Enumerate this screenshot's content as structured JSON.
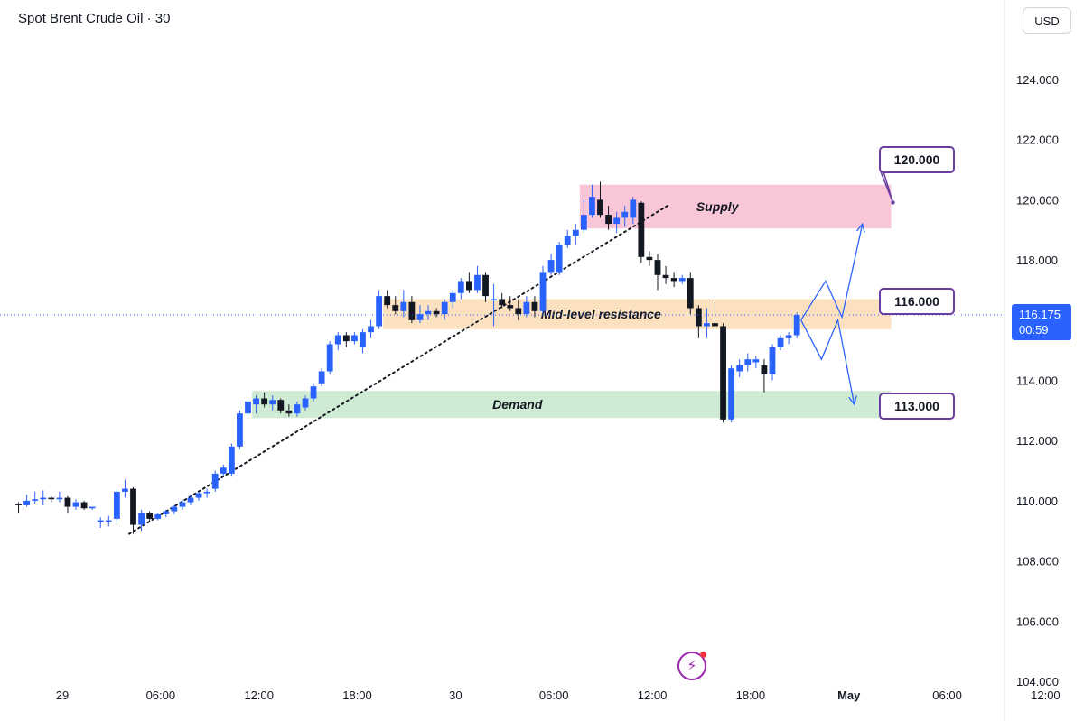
{
  "header": {
    "title": "Spot Brent Crude Oil · 30",
    "currency": "USD"
  },
  "price_tag": {
    "value": "116.175",
    "countdown": "00:59"
  },
  "callouts": [
    {
      "label": "120.000",
      "price": 120.0
    },
    {
      "label": "116.000",
      "price": 116.0
    },
    {
      "label": "113.000",
      "price": 113.0
    }
  ],
  "chart_data": {
    "type": "candlestick",
    "title": "Spot Brent Crude Oil · 30",
    "y_axis": {
      "ticks": [
        "124.000",
        "122.000",
        "120.000",
        "118.000",
        "116.000",
        "114.000",
        "112.000",
        "110.000",
        "108.000",
        "106.000",
        "104.000"
      ],
      "tick_values": [
        124,
        122,
        120,
        118,
        116,
        114,
        112,
        110,
        108,
        106,
        104
      ],
      "range": [
        104,
        125.2
      ]
    },
    "x_axis": {
      "ticks": [
        "29",
        "06:00",
        "12:00",
        "18:00",
        "30",
        "06:00",
        "12:00",
        "18:00",
        "May",
        "06:00",
        "12:00"
      ],
      "tick_bars": [
        0,
        12,
        24,
        36,
        48,
        60,
        72,
        84,
        96,
        108,
        120
      ],
      "bold": [
        "May"
      ]
    },
    "last_price": 116.175,
    "colors": {
      "up": "#2962ff",
      "down": "#131722"
    },
    "candles": [
      [
        109.9,
        109.95,
        109.6,
        109.85
      ],
      [
        109.85,
        110.2,
        109.8,
        110.0
      ],
      [
        110.0,
        110.3,
        109.9,
        110.05
      ],
      [
        110.05,
        110.35,
        109.85,
        110.1
      ],
      [
        110.1,
        110.15,
        109.95,
        110.05
      ],
      [
        110.05,
        110.3,
        109.95,
        110.1
      ],
      [
        110.1,
        110.15,
        109.6,
        109.8
      ],
      [
        109.8,
        110.05,
        109.7,
        109.95
      ],
      [
        109.95,
        110.0,
        109.7,
        109.75
      ],
      [
        109.75,
        109.8,
        109.7,
        109.8
      ],
      [
        109.3,
        109.45,
        109.1,
        109.35
      ],
      [
        109.35,
        109.5,
        109.15,
        109.35
      ],
      [
        109.4,
        110.4,
        109.3,
        110.3
      ],
      [
        110.3,
        110.7,
        110.1,
        110.4
      ],
      [
        110.4,
        110.45,
        108.9,
        109.2
      ],
      [
        109.2,
        109.7,
        109.0,
        109.6
      ],
      [
        109.6,
        109.65,
        109.3,
        109.4
      ],
      [
        109.4,
        109.6,
        109.35,
        109.55
      ],
      [
        109.55,
        109.7,
        109.45,
        109.65
      ],
      [
        109.65,
        109.85,
        109.55,
        109.8
      ],
      [
        109.8,
        110.05,
        109.7,
        109.95
      ],
      [
        109.95,
        110.2,
        109.85,
        110.1
      ],
      [
        110.1,
        110.3,
        110.0,
        110.25
      ],
      [
        110.25,
        110.4,
        110.1,
        110.3
      ],
      [
        110.4,
        111.0,
        110.3,
        110.9
      ],
      [
        110.9,
        111.2,
        110.8,
        111.1
      ],
      [
        110.9,
        111.9,
        110.8,
        111.8
      ],
      [
        111.8,
        113.0,
        111.7,
        112.9
      ],
      [
        112.9,
        113.4,
        112.8,
        113.3
      ],
      [
        113.2,
        113.5,
        112.9,
        113.4
      ],
      [
        113.4,
        113.6,
        113.1,
        113.2
      ],
      [
        113.2,
        113.5,
        113.0,
        113.35
      ],
      [
        113.35,
        113.4,
        112.9,
        113.0
      ],
      [
        113.0,
        113.2,
        112.8,
        112.9
      ],
      [
        112.9,
        113.3,
        112.8,
        113.2
      ],
      [
        113.1,
        113.5,
        113.0,
        113.4
      ],
      [
        113.4,
        113.9,
        113.3,
        113.8
      ],
      [
        113.9,
        114.4,
        113.8,
        114.3
      ],
      [
        114.3,
        115.3,
        114.2,
        115.2
      ],
      [
        115.2,
        115.6,
        115.0,
        115.5
      ],
      [
        115.5,
        115.6,
        115.1,
        115.3
      ],
      [
        115.3,
        115.6,
        115.2,
        115.5
      ],
      [
        115.1,
        115.7,
        114.9,
        115.6
      ],
      [
        115.6,
        116.0,
        115.4,
        115.8
      ],
      [
        115.8,
        117.0,
        115.7,
        116.8
      ],
      [
        116.8,
        117.0,
        116.4,
        116.5
      ],
      [
        116.5,
        116.8,
        116.2,
        116.3
      ],
      [
        116.3,
        117.0,
        116.1,
        116.6
      ],
      [
        116.6,
        116.8,
        115.9,
        116.0
      ],
      [
        116.0,
        116.5,
        115.9,
        116.2
      ],
      [
        116.2,
        116.5,
        116.0,
        116.3
      ],
      [
        116.3,
        116.4,
        116.1,
        116.2
      ],
      [
        116.2,
        116.7,
        116.0,
        116.6
      ],
      [
        116.6,
        117.0,
        116.4,
        116.9
      ],
      [
        116.9,
        117.4,
        116.7,
        117.3
      ],
      [
        117.3,
        117.6,
        116.9,
        117.0
      ],
      [
        117.0,
        117.8,
        116.9,
        117.5
      ],
      [
        117.5,
        117.6,
        116.6,
        116.8
      ],
      [
        116.7,
        117.2,
        115.8,
        116.7
      ],
      [
        116.7,
        116.9,
        116.4,
        116.5
      ],
      [
        116.5,
        116.8,
        116.3,
        116.4
      ],
      [
        116.4,
        116.7,
        116.0,
        116.2
      ],
      [
        116.2,
        116.8,
        116.1,
        116.6
      ],
      [
        116.6,
        116.8,
        116.1,
        116.3
      ],
      [
        116.3,
        117.8,
        116.2,
        117.6
      ],
      [
        117.6,
        118.2,
        117.5,
        118.0
      ],
      [
        117.6,
        118.6,
        117.5,
        118.5
      ],
      [
        118.5,
        119.0,
        118.4,
        118.8
      ],
      [
        118.8,
        119.2,
        118.5,
        119.0
      ],
      [
        119.0,
        120.0,
        118.9,
        119.5
      ],
      [
        119.5,
        120.5,
        119.4,
        120.1
      ],
      [
        120.0,
        120.6,
        119.4,
        119.5
      ],
      [
        119.5,
        119.8,
        119.0,
        119.2
      ],
      [
        119.2,
        119.6,
        118.9,
        119.4
      ],
      [
        119.4,
        119.8,
        119.1,
        119.6
      ],
      [
        119.4,
        120.1,
        119.2,
        120.0
      ],
      [
        119.9,
        119.95,
        117.9,
        118.1
      ],
      [
        118.1,
        118.3,
        117.8,
        118.0
      ],
      [
        118.0,
        118.2,
        117.0,
        117.5
      ],
      [
        117.5,
        117.8,
        117.2,
        117.4
      ],
      [
        117.4,
        117.6,
        117.1,
        117.3
      ],
      [
        117.3,
        117.5,
        117.2,
        117.4
      ],
      [
        117.4,
        117.6,
        116.2,
        116.4
      ],
      [
        116.4,
        116.5,
        115.4,
        115.8
      ],
      [
        115.8,
        116.4,
        115.4,
        115.9
      ],
      [
        115.9,
        116.6,
        115.7,
        115.8
      ],
      [
        115.8,
        115.9,
        112.6,
        112.7
      ],
      [
        112.7,
        114.5,
        112.6,
        114.4
      ],
      [
        114.3,
        114.7,
        114.1,
        114.5
      ],
      [
        114.5,
        114.9,
        114.3,
        114.7
      ],
      [
        114.6,
        114.8,
        114.4,
        114.7
      ],
      [
        114.5,
        114.7,
        113.6,
        114.2
      ],
      [
        114.2,
        115.2,
        114.0,
        115.1
      ],
      [
        115.1,
        115.5,
        115.0,
        115.4
      ],
      [
        115.4,
        115.6,
        115.2,
        115.5
      ],
      [
        115.5,
        116.25,
        115.4,
        116.175
      ]
    ],
    "zones": [
      {
        "label": "Supply",
        "from": 119.05,
        "to": 120.5,
        "start_bar": 69,
        "end_bar": 107,
        "color": "#f8c6d6"
      },
      {
        "label": "Mid-level resistance",
        "from": 115.7,
        "to": 116.7,
        "start_bar": 45,
        "end_bar": 107,
        "color": "#fbe1c0"
      },
      {
        "label": "Demand",
        "from": 112.75,
        "to": 113.65,
        "start_bar": 29,
        "end_bar": 107,
        "color": "#d0ebd3"
      }
    ],
    "trendline": {
      "from": {
        "bar": 14,
        "price": 108.9
      },
      "to": {
        "bar": 80,
        "price": 119.85
      },
      "style": "dotted"
    },
    "projections": [
      {
        "points": [
          [
            96,
            116.0
          ],
          [
            99,
            117.3
          ],
          [
            101,
            116.1
          ],
          [
            103.5,
            119.2
          ]
        ]
      },
      {
        "points": [
          [
            96,
            116.0
          ],
          [
            98.5,
            114.7
          ],
          [
            100.5,
            116.0
          ],
          [
            102.5,
            113.2
          ]
        ]
      }
    ]
  }
}
